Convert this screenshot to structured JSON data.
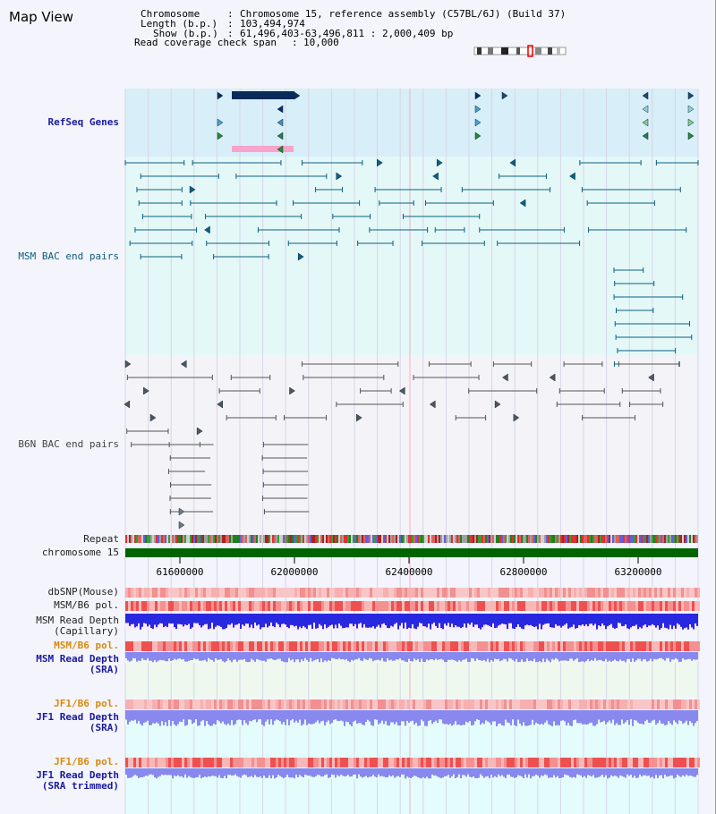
{
  "title": "Map View",
  "info": {
    "chromosome_key": "Chromosome",
    "chromosome_val": "Chromosome 15, reference assembly (C57BL/6J) (Build 37)",
    "length_key": "Length (b.p.)",
    "length_val": "103,494,974",
    "show_key": "Show (b.p.)",
    "show_val": "61,496,403-63,496,811 : 2,000,409 bp",
    "span_key": "Read coverage check span",
    "span_val": "10,000"
  },
  "tracks": {
    "refseq": "RefSeq Genes",
    "msm_bac": "MSM BAC end pairs",
    "b6n_bac": "B6N BAC end pairs",
    "repeat": "Repeat",
    "chromosome": "chromosome 15",
    "dbsnp": "dbSNP(Mouse)",
    "msm_b6_pol_1": "MSM/B6 pol.",
    "msm_depth_cap_1": "MSM Read Depth",
    "msm_depth_cap_2": "(Capillary)",
    "msm_b6_pol_2": "MSM/B6 pol.",
    "msm_depth_sra_1": "MSM Read Depth",
    "msm_depth_sra_2": "(SRA)",
    "jf1_b6_pol_1": "JF1/B6 pol.",
    "jf1_depth_sra_1": "JF1 Read Depth",
    "jf1_depth_sra_2": "(SRA)",
    "jf1_b6_pol_2": "JF1/B6 pol.",
    "jf1_depth_trim_1": "JF1 Read Depth",
    "jf1_depth_trim_2": "(SRA trimmed)"
  },
  "axis": {
    "ticks": [
      "61600000",
      "62000000",
      "62400000",
      "62800000",
      "63200000"
    ]
  },
  "colors": {
    "refseq_bg": "#d8eef8",
    "msm_bg": "#e4f8f8",
    "b6n_bg": "#f4f4f8",
    "msm_line": "#0c6080",
    "b6n_line": "#555555",
    "gene_dark": "#0a2a5a",
    "gene_pink": "#f7a3cc",
    "chromosome_green": "#006400",
    "depth_blue": "#2828e0",
    "depth_light": "#8888ee",
    "snp_red": "#e83030"
  }
}
